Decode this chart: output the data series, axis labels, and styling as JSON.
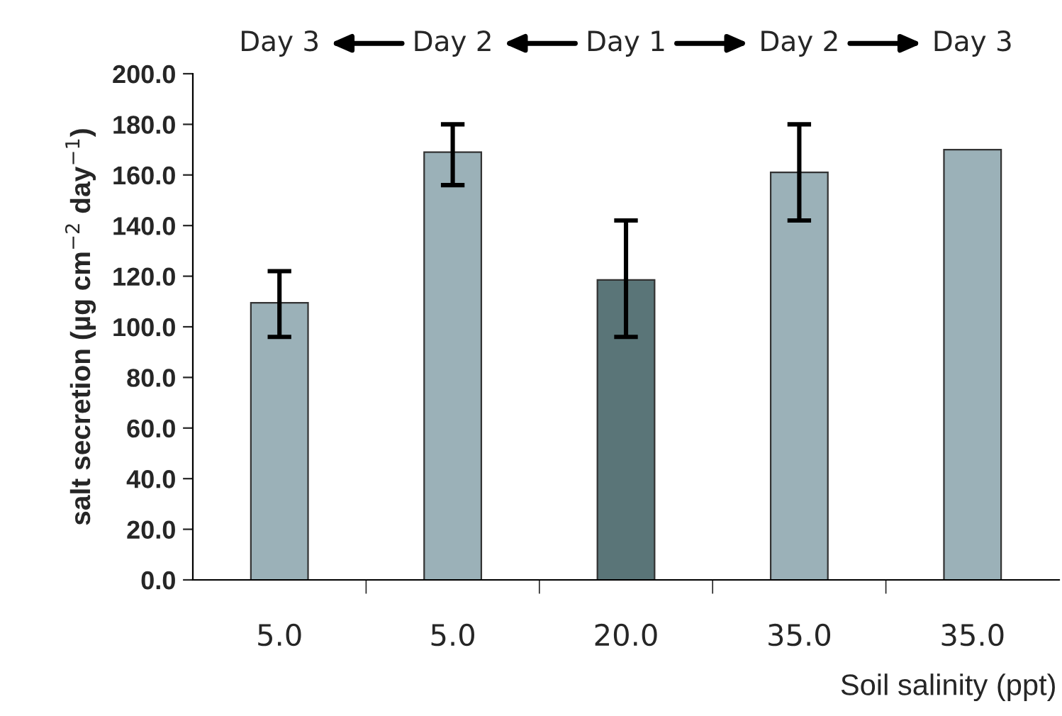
{
  "chart_data": {
    "type": "bar",
    "xlabel": "Soil salinity (ppt)",
    "ylabel": "salt secretion (µg cm$^{−2}$ day$^{−1}$)",
    "categories": [
      "5.0",
      "5.0",
      "20.0",
      "35.0",
      "35.0"
    ],
    "values": [
      109.5,
      169,
      118.5,
      161,
      170
    ],
    "colors": [
      "#9bb1b8",
      "#9bb1b8",
      "#5a7578",
      "#9bb1b8",
      "#9bb1b8"
    ],
    "errors": [
      [
        96,
        122
      ],
      [
        156,
        180
      ],
      [
        96,
        142
      ],
      [
        142,
        180
      ],
      null
    ],
    "ylim": [
      0,
      200
    ],
    "yticks": [
      {
        "value": 0,
        "label": "0.0"
      },
      {
        "value": 20,
        "label": "20.0"
      },
      {
        "value": 40,
        "label": "40.0"
      },
      {
        "value": 60,
        "label": "60.0"
      },
      {
        "value": 80,
        "label": "80.0"
      },
      {
        "value": 100,
        "label": "100.0"
      },
      {
        "value": 120,
        "label": "120.0"
      },
      {
        "value": 140,
        "label": "140.0"
      },
      {
        "value": 160,
        "label": "160.0"
      },
      {
        "value": 180,
        "label": "180.0"
      },
      {
        "value": 200,
        "label": "200.0"
      }
    ],
    "annotations": [
      "Day 3",
      "Day 2",
      "Day 1",
      "Day 2",
      "Day 3"
    ]
  }
}
